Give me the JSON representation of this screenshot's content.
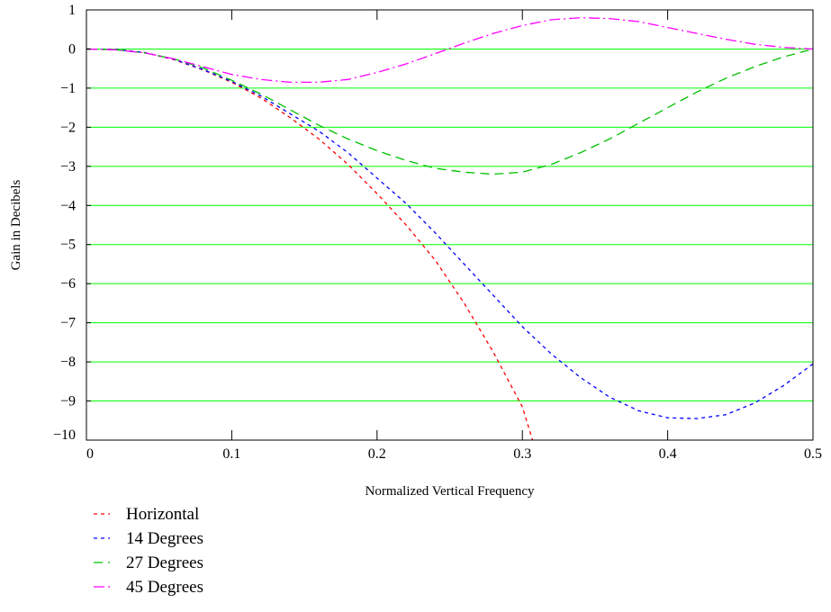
{
  "chart_data": {
    "type": "line",
    "title": "",
    "xlabel": "Normalized Vertical Frequency",
    "ylabel": "Gain in Decibels",
    "xlim": [
      0,
      0.5
    ],
    "ylim": [
      -10,
      1
    ],
    "xticks": [
      0,
      0.1,
      0.2,
      0.3,
      0.4,
      0.5
    ],
    "xtick_labels": [
      "0",
      "0.1",
      "0.2",
      "0.3",
      "0.4",
      "0.5"
    ],
    "yticks": [
      1,
      0,
      -1,
      -2,
      -3,
      -4,
      -5,
      -6,
      -7,
      -8,
      -9,
      -10
    ],
    "ytick_labels": [
      "1",
      "0",
      "−1",
      "−2",
      "−3",
      "−4",
      "−5",
      "−6",
      "−7",
      "−8",
      "−9",
      "−10"
    ],
    "grid": "horizontal",
    "grid_color": "#00ff00",
    "legend_position": "below-left",
    "series": [
      {
        "name": "Horizontal",
        "color": "#ff0000",
        "dash": "4,4",
        "x": [
          0,
          0.02,
          0.04,
          0.06,
          0.08,
          0.1,
          0.12,
          0.14,
          0.16,
          0.18,
          0.2,
          0.22,
          0.24,
          0.26,
          0.28,
          0.3,
          0.307
        ],
        "y": [
          0,
          -0.01,
          -0.09,
          -0.27,
          -0.53,
          -0.85,
          -1.25,
          -1.75,
          -2.3,
          -2.95,
          -3.7,
          -4.5,
          -5.4,
          -6.5,
          -7.75,
          -9.15,
          -10
        ]
      },
      {
        "name": "14 Degrees",
        "color": "#0000ff",
        "dash": "4,4",
        "x": [
          0,
          0.02,
          0.04,
          0.06,
          0.08,
          0.1,
          0.12,
          0.14,
          0.16,
          0.18,
          0.2,
          0.22,
          0.24,
          0.26,
          0.28,
          0.3,
          0.32,
          0.34,
          0.36,
          0.38,
          0.4,
          0.42,
          0.44,
          0.46,
          0.48,
          0.5
        ],
        "y": [
          0,
          -0.01,
          -0.09,
          -0.26,
          -0.52,
          -0.83,
          -1.2,
          -1.65,
          -2.1,
          -2.65,
          -3.3,
          -3.95,
          -4.7,
          -5.5,
          -6.3,
          -7.1,
          -7.8,
          -8.4,
          -8.9,
          -9.25,
          -9.43,
          -9.45,
          -9.35,
          -9.05,
          -8.6,
          -8.05
        ]
      },
      {
        "name": "27 Degrees",
        "color": "#00c000",
        "dash": "10,6",
        "x": [
          0,
          0.02,
          0.04,
          0.06,
          0.08,
          0.1,
          0.12,
          0.14,
          0.16,
          0.18,
          0.2,
          0.22,
          0.24,
          0.26,
          0.28,
          0.3,
          0.32,
          0.34,
          0.36,
          0.38,
          0.4,
          0.42,
          0.44,
          0.46,
          0.48,
          0.5
        ],
        "y": [
          0,
          -0.02,
          -0.1,
          -0.25,
          -0.48,
          -0.8,
          -1.15,
          -1.55,
          -1.95,
          -2.3,
          -2.6,
          -2.85,
          -3.05,
          -3.15,
          -3.2,
          -3.15,
          -2.95,
          -2.65,
          -2.3,
          -1.9,
          -1.5,
          -1.1,
          -0.75,
          -0.45,
          -0.2,
          0
        ]
      },
      {
        "name": "45 Degrees",
        "color": "#ff00ff",
        "dash": "12,4,2,4",
        "x": [
          0,
          0.02,
          0.04,
          0.06,
          0.08,
          0.1,
          0.12,
          0.14,
          0.16,
          0.18,
          0.2,
          0.22,
          0.24,
          0.26,
          0.28,
          0.3,
          0.32,
          0.34,
          0.36,
          0.38,
          0.4,
          0.42,
          0.44,
          0.46,
          0.48,
          0.5
        ],
        "y": [
          0,
          -0.02,
          -0.1,
          -0.25,
          -0.45,
          -0.65,
          -0.78,
          -0.85,
          -0.85,
          -0.78,
          -0.6,
          -0.38,
          -0.12,
          0.15,
          0.4,
          0.6,
          0.75,
          0.8,
          0.78,
          0.7,
          0.55,
          0.4,
          0.25,
          0.12,
          0.04,
          0
        ]
      }
    ]
  }
}
